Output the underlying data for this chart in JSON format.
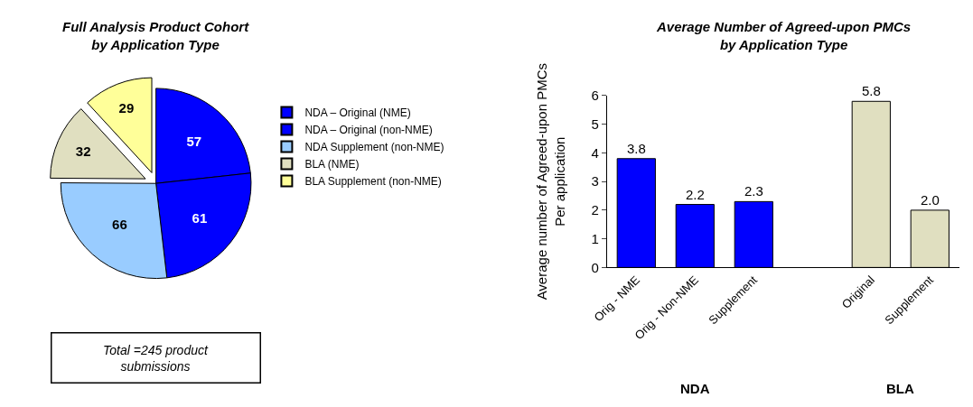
{
  "chart_data": [
    {
      "type": "pie",
      "title": "Full Analysis Product Cohort\nby Application Type",
      "categories": [
        "NDA – Original (NME)",
        "NDA – Original (non-NME)",
        "NDA Supplement (non-NME)",
        "BLA (NME)",
        "BLA Supplement (non-NME)"
      ],
      "values": [
        57,
        61,
        66,
        32,
        29
      ],
      "colors": [
        "#0000ff",
        "#0000ff",
        "#99ccff",
        "#e0dfc0",
        "#ffff99"
      ],
      "data_labels": true,
      "legend": "right",
      "annotations": [
        "Total =245 product\nsubmissions"
      ]
    },
    {
      "type": "bar",
      "title": "Average Number of Agreed-upon PMCs\nby Application Type",
      "ylabel": "Average number of Agreed-upon PMCs\nPer application",
      "categories": [
        "Orig - NME",
        "Orig - Non-NME",
        "Supplement",
        null,
        "Original",
        "Supplement"
      ],
      "values": [
        3.8,
        2.2,
        2.3,
        null,
        5.8,
        2.0
      ],
      "colors": [
        "#0000ff",
        "#0000ff",
        "#0000ff",
        null,
        "#e0dfc0",
        "#e0dfc0"
      ],
      "value_labels": [
        "3.8",
        "2.2",
        "2.3",
        null,
        "5.8",
        "2.0"
      ],
      "ylim": [
        0,
        6
      ],
      "yticks": [
        0,
        1,
        2,
        3,
        4,
        5,
        6
      ],
      "annotations": [
        "NDA",
        "BLA"
      ]
    }
  ]
}
